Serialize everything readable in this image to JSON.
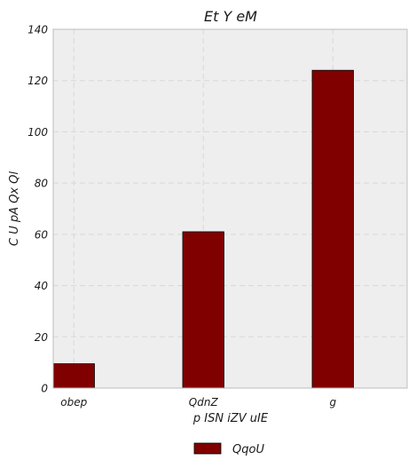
{
  "chart_data": {
    "type": "bar",
    "title": "Et  Y eM",
    "xlabel": "p ISN iZV uIE",
    "ylabel": "C U pA   Qx Ql",
    "categories": [
      "obep",
      "QdnZ",
      "g"
    ],
    "series": [
      {
        "name": "QqoU",
        "values": [
          9.5,
          61,
          124
        ]
      }
    ],
    "ylim": [
      0,
      140
    ],
    "yticks": [
      "0",
      "20",
      "40",
      "60",
      "80",
      "100",
      "120",
      "140"
    ],
    "grid": true,
    "legend_position": "bottom-center",
    "colors": {
      "bar": "#800000",
      "plot_background": "#eeeeee",
      "grid": "#d8d8d8"
    }
  }
}
